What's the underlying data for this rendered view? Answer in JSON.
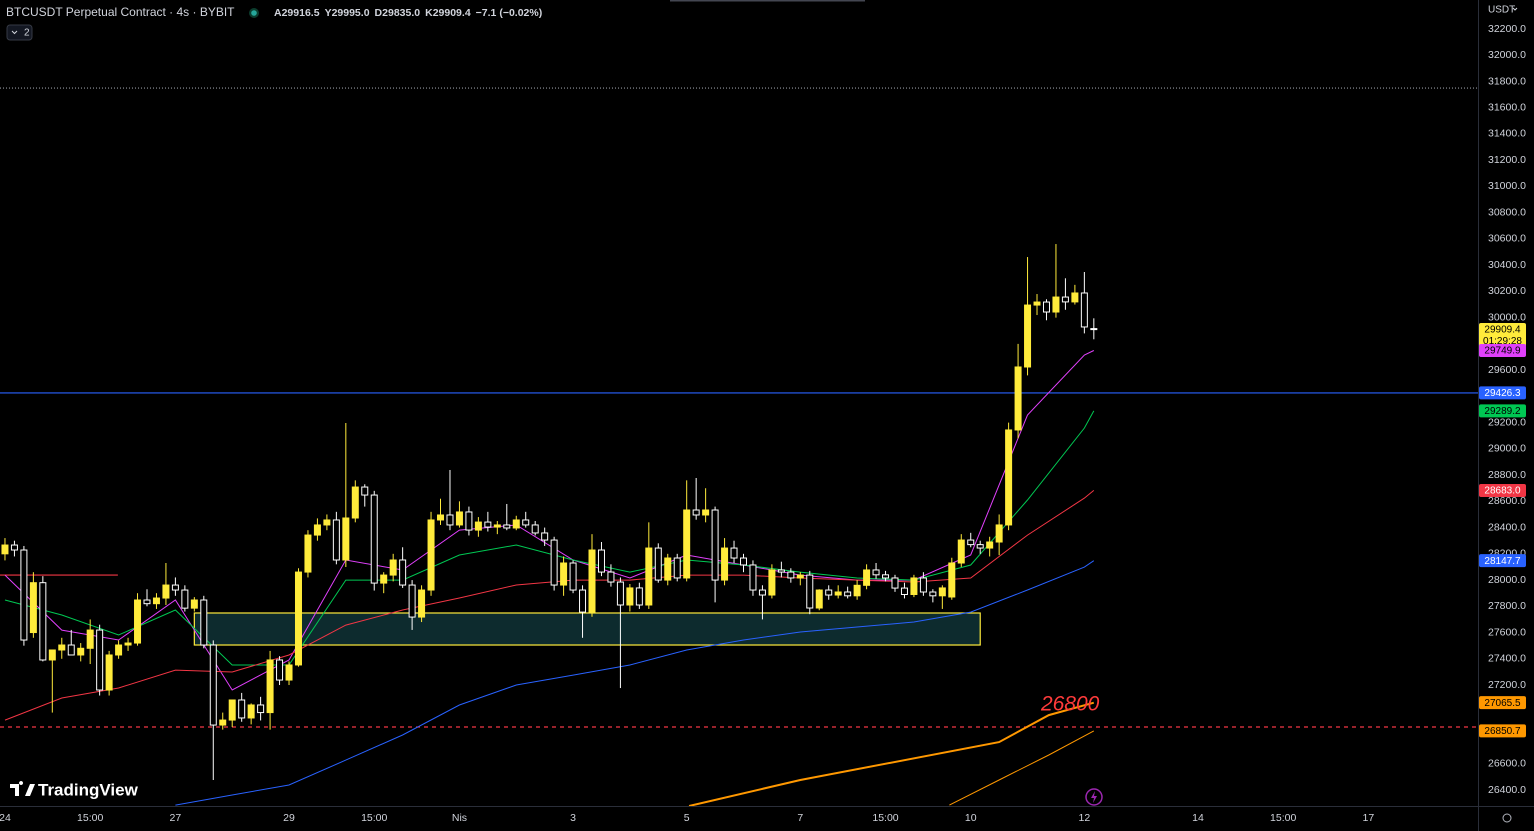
{
  "header": {
    "title": "BTCUSDT Perpetual Contract · 4s · BYBIT",
    "ohlc": [
      {
        "key": "A",
        "value": "29916.5"
      },
      {
        "key": "Y",
        "value": "29995.0"
      },
      {
        "key": "D",
        "value": "29835.0"
      },
      {
        "key": "K",
        "value": "29909.4"
      }
    ],
    "change": "−7.1 (−0.02%)",
    "indicators": "2",
    "currency": "USDT"
  },
  "logo": "TradingView",
  "chart_data": {
    "type": "candlestick",
    "x": [
      0,
      4,
      8,
      12,
      16,
      20,
      24,
      28,
      32,
      36,
      40,
      44,
      48,
      52,
      56,
      60,
      64,
      68,
      72,
      76,
      80,
      84,
      88,
      92,
      96,
      100,
      104,
      108,
      112,
      116,
      120,
      124,
      128,
      132,
      136,
      140,
      144,
      148,
      152,
      156,
      160,
      164,
      168,
      172,
      176,
      180,
      184,
      188,
      192,
      196,
      200,
      204,
      208,
      212,
      216,
      220,
      224,
      228,
      232,
      236,
      240,
      244,
      248,
      252,
      256,
      260,
      264,
      268,
      272,
      276,
      280,
      284,
      288,
      292,
      296,
      300,
      304,
      308,
      312,
      316,
      320,
      324,
      328,
      332,
      336,
      340,
      344,
      348,
      352,
      356,
      360,
      364,
      368,
      372,
      376,
      380,
      384,
      388,
      392,
      396,
      400,
      404,
      408,
      412,
      416,
      420,
      424,
      428,
      432,
      436,
      440,
      444,
      448,
      452,
      456,
      460
    ],
    "open": [
      28200,
      28267,
      28229,
      27600,
      27980,
      27391,
      27467,
      27505,
      27429,
      27480,
      27619,
      27162,
      27429,
      27505,
      27520,
      27848,
      27820,
      27863,
      27962,
      27924,
      27786,
      27848,
      27505,
      26895,
      26933,
      27086,
      26949,
      27048,
      26990,
      27391,
      27238,
      27353,
      28061,
      28343,
      28420,
      28458,
      28153,
      28473,
      28709,
      28648,
      27977,
      28038,
      28153,
      27962,
      27718,
      27924,
      28458,
      28496,
      28420,
      28519,
      28381,
      28442,
      28404,
      28420,
      28397,
      28458,
      28420,
      28359,
      28305,
      27962,
      28130,
      27924,
      27756,
      28229,
      28061,
      27985,
      27810,
      27940,
      27810,
      28244,
      28000,
      28168,
      28016,
      28534,
      28496,
      28534,
      28000,
      28244,
      28168,
      28115,
      27924,
      27886,
      28077,
      28061,
      28016,
      28038,
      27787,
      27924,
      27886,
      27909,
      27880,
      27960,
      28077,
      28040,
      28016,
      27939,
      27890,
      28016,
      27909,
      27880,
      27871,
      28130,
      28305,
      28270,
      28244,
      28290,
      28420,
      29144,
      29624,
      30096,
      30119,
      30043,
      30157,
      30120,
      30188,
      29916.5
    ],
    "high": [
      28320,
      28300,
      28260,
      28060,
      28030,
      27460,
      27560,
      27620,
      27520,
      27700,
      27660,
      27460,
      27540,
      27560,
      27900,
      27930,
      27900,
      28130,
      28020,
      27960,
      27870,
      27880,
      27540,
      26990,
      27080,
      27140,
      27060,
      27110,
      27460,
      27420,
      27380,
      28090,
      28380,
      28470,
      28500,
      28520,
      29197,
      28760,
      28730,
      28680,
      28060,
      28200,
      28250,
      28000,
      27960,
      28520,
      28620,
      28839,
      28600,
      28560,
      28480,
      28520,
      28450,
      28580,
      28490,
      28520,
      28450,
      28400,
      28330,
      28180,
      28150,
      27960,
      28350,
      28290,
      28120,
      28020,
      27970,
      27980,
      28440,
      28280,
      28200,
      28200,
      28760,
      28778,
      28700,
      28560,
      28320,
      28300,
      28200,
      28150,
      27960,
      28120,
      28140,
      28090,
      28060,
      28070,
      27930,
      27960,
      27960,
      27950,
      28000,
      28120,
      28130,
      28070,
      28040,
      27980,
      28040,
      28060,
      27930,
      27960,
      28170,
      28350,
      28360,
      28300,
      28330,
      28500,
      29200,
      29800,
      30462,
      30180,
      30140,
      30561,
      30300,
      30250,
      30348,
      29995.0
    ],
    "low": [
      28150,
      28180,
      27500,
      27560,
      27380,
      26990,
      27400,
      27430,
      27380,
      27360,
      27120,
      27120,
      27400,
      27460,
      27500,
      27800,
      27780,
      27810,
      27880,
      27760,
      27760,
      27480,
      26476,
      26860,
      26880,
      26920,
      26900,
      26930,
      26860,
      27200,
      27200,
      27340,
      28020,
      28300,
      28380,
      28120,
      28100,
      28440,
      28560,
      27920,
      27900,
      27990,
      27940,
      27620,
      27680,
      27880,
      28420,
      28380,
      28400,
      28340,
      28330,
      28370,
      28350,
      28380,
      28380,
      28400,
      28340,
      28260,
      27920,
      27880,
      27900,
      27560,
      27720,
      28030,
      27950,
      27177,
      27760,
      27780,
      27780,
      27980,
      27960,
      27990,
      27990,
      28460,
      28440,
      27830,
      27960,
      28130,
      28060,
      27880,
      27700,
      27860,
      28020,
      27980,
      27960,
      27740,
      27770,
      27850,
      27860,
      27860,
      27850,
      27930,
      28010,
      27990,
      27910,
      27860,
      27870,
      27880,
      27830,
      27780,
      27850,
      28100,
      28250,
      28200,
      28180,
      28190,
      28380,
      29080,
      29560,
      30020,
      29980,
      30000,
      30060,
      30100,
      29880,
      29835.0
    ],
    "close": [
      28267,
      28229,
      27543,
      27980,
      27391,
      27467,
      27505,
      27429,
      27480,
      27619,
      27162,
      27429,
      27505,
      27520,
      27848,
      27820,
      27863,
      27962,
      27924,
      27786,
      27848,
      27505,
      26895,
      26933,
      27086,
      26949,
      27048,
      26990,
      27391,
      27238,
      27353,
      28061,
      28343,
      28420,
      28458,
      28153,
      28473,
      28709,
      28648,
      27977,
      28038,
      28153,
      27962,
      27718,
      27924,
      28458,
      28496,
      28420,
      28519,
      28381,
      28442,
      28404,
      28420,
      28397,
      28458,
      28420,
      28359,
      28305,
      27962,
      28130,
      27924,
      27756,
      28229,
      28061,
      27985,
      27810,
      27940,
      27810,
      28244,
      28000,
      28168,
      28016,
      28534,
      28496,
      28534,
      28000,
      28244,
      28168,
      28115,
      27924,
      27886,
      28077,
      28061,
      28016,
      28038,
      27787,
      27924,
      27886,
      27909,
      27880,
      27960,
      28077,
      28040,
      28016,
      27939,
      27890,
      28016,
      27909,
      27880,
      27940,
      28130,
      28305,
      28270,
      28244,
      28290,
      28420,
      29144,
      29624,
      30096,
      30119,
      30043,
      30157,
      30120,
      30188,
      29929,
      29909.4
    ],
    "up_color": "#ffeb3b",
    "down_color": "#ffffff",
    "series": [
      {
        "color": "#e040fb",
        "width": 1,
        "x": [
          0,
          24,
          48,
          72,
          96,
          120,
          144,
          168,
          192,
          216,
          240,
          264,
          288,
          312,
          336,
          360,
          384,
          408,
          432,
          456,
          460
        ],
        "values": [
          28038,
          27619,
          27543,
          27848,
          27162,
          27391,
          28153,
          28077,
          28381,
          28420,
          28153,
          28016,
          28191,
          28115,
          28038,
          28000,
          28000,
          28191,
          29258,
          29715,
          29749.9
        ]
      },
      {
        "color": "#00c853",
        "width": 1,
        "x": [
          0,
          24,
          48,
          72,
          96,
          120,
          144,
          168,
          192,
          216,
          240,
          264,
          288,
          312,
          336,
          360,
          384,
          408,
          432,
          456,
          460
        ],
        "values": [
          27848,
          27734,
          27581,
          27772,
          27353,
          27353,
          28000,
          28000,
          28191,
          28267,
          28153,
          28061,
          28153,
          28115,
          28061,
          28016,
          28000,
          28115,
          28610,
          29159,
          29289.2
        ]
      },
      {
        "color": "#f23645",
        "width": 1,
        "x": [
          0,
          24,
          48,
          72,
          96,
          120,
          144,
          168,
          192,
          216,
          240,
          264,
          288,
          312,
          336,
          360,
          384,
          408,
          432,
          456,
          460
        ],
        "values": [
          26933,
          27101,
          27177,
          27314,
          27299,
          27429,
          27657,
          27772,
          27863,
          27962,
          28000,
          28000,
          28038,
          28038,
          28016,
          28000,
          27985,
          28016,
          28343,
          28625,
          28683.0
        ]
      },
      {
        "color": "#2962ff",
        "width": 1,
        "x": [
          72,
          96,
          120,
          144,
          168,
          192,
          216,
          240,
          264,
          288,
          312,
          336,
          360,
          384,
          408,
          432,
          456,
          460
        ],
        "values": [
          26285,
          26362,
          26438,
          26628,
          26819,
          27048,
          27200,
          27276,
          27353,
          27467,
          27543,
          27604,
          27642,
          27680,
          27756,
          27924,
          28099,
          28147.7
        ]
      },
      {
        "color": "#ff9800",
        "width": 2,
        "x": [
          289,
          336,
          420,
          441,
          460
        ],
        "values": [
          26278,
          26476,
          26765,
          26971,
          27065.5
        ]
      },
      {
        "color": "#ff9800",
        "width": 1,
        "x": [
          399,
          420,
          441,
          460
        ],
        "values": [
          26285,
          26476,
          26667,
          26850.7
        ]
      }
    ],
    "xlim": [
      -2.1,
      622.3
    ],
    "ylim": [
      26278,
      32421
    ],
    "xticks": [
      {
        "value": 0,
        "label": "24"
      },
      {
        "value": 36,
        "label": "15:00"
      },
      {
        "value": 72,
        "label": "27"
      },
      {
        "value": 120,
        "label": "29"
      },
      {
        "value": 156,
        "label": "15:00"
      },
      {
        "value": 192,
        "label": "Nis"
      },
      {
        "value": 240,
        "label": "3"
      },
      {
        "value": 288,
        "label": "5"
      },
      {
        "value": 336,
        "label": "7"
      },
      {
        "value": 372,
        "label": "15:00"
      },
      {
        "value": 408,
        "label": "10"
      },
      {
        "value": 456,
        "label": "12"
      },
      {
        "value": 504,
        "label": "14"
      },
      {
        "value": 540,
        "label": "15:00"
      },
      {
        "value": 576,
        "label": "17"
      }
    ],
    "yticks": [
      {
        "value": 32200,
        "label": "32200.0"
      },
      {
        "value": 32000,
        "label": "32000.0"
      },
      {
        "value": 31800,
        "label": "31800.0"
      },
      {
        "value": 31600,
        "label": "31600.0"
      },
      {
        "value": 31400,
        "label": "31400.0"
      },
      {
        "value": 31200,
        "label": "31200.0"
      },
      {
        "value": 31000,
        "label": "31000.0"
      },
      {
        "value": 30800,
        "label": "30800.0"
      },
      {
        "value": 30600,
        "label": "30600.0"
      },
      {
        "value": 30400,
        "label": "30400.0"
      },
      {
        "value": 30200,
        "label": "30200.0"
      },
      {
        "value": 30000,
        "label": "30000.0"
      },
      {
        "value": 29600,
        "label": "29600.0"
      },
      {
        "value": 29200,
        "label": "29200.0"
      },
      {
        "value": 29000,
        "label": "29000.0"
      },
      {
        "value": 28800,
        "label": "28800.0"
      },
      {
        "value": 28600,
        "label": "28600.0"
      },
      {
        "value": 28400,
        "label": "28400.0"
      },
      {
        "value": 28200,
        "label": "28200.0"
      },
      {
        "value": 28000,
        "label": "28000.0"
      },
      {
        "value": 27800,
        "label": "27800.0"
      },
      {
        "value": 27600,
        "label": "27600.0"
      },
      {
        "value": 27400,
        "label": "27400.0"
      },
      {
        "value": 27200,
        "label": "27200.0"
      },
      {
        "value": 26600,
        "label": "26600.0"
      },
      {
        "value": 26400,
        "label": "26400.0"
      }
    ],
    "grid": false,
    "hlines": [
      {
        "value": 29426.3,
        "color": "#2962ff",
        "style": "solid"
      },
      {
        "value": 26880,
        "color": "#f23645",
        "style": "dashed"
      },
      {
        "value": 31750,
        "color": "#9598a1",
        "style": "dotted"
      },
      {
        "value": 28038,
        "color": "#f23645",
        "style": "solid",
        "x": [
          -2.1,
          47.7
        ]
      }
    ],
    "zone": {
      "x": [
        80,
        412
      ],
      "y": [
        27505,
        27749
      ],
      "color": "#ffeb3b",
      "fill": "#0d2b2e"
    },
    "annotation": {
      "text": "26800",
      "x": 450,
      "y": 27048,
      "color": "#ff3b3b"
    },
    "price_labels": [
      {
        "value": 29909.4,
        "label": "29909.4",
        "color": "#ffeb3b",
        "text_color": "#000000",
        "countdown": "01:29:28"
      },
      {
        "value": 29749.9,
        "label": "29749.9",
        "color": "#e040fb",
        "text_color": "#000000"
      },
      {
        "value": 29426.3,
        "label": "29426.3",
        "color": "#2962ff",
        "text_color": "#ffffff"
      },
      {
        "value": 29289.2,
        "label": "29289.2",
        "color": "#00c853",
        "text_color": "#000000"
      },
      {
        "value": 28683.0,
        "label": "28683.0",
        "color": "#f23645",
        "text_color": "#ffffff"
      },
      {
        "value": 28147.7,
        "label": "28147.7",
        "color": "#2962ff",
        "text_color": "#ffffff"
      },
      {
        "value": 27065.5,
        "label": "27065.5",
        "color": "#ff9800",
        "text_color": "#000000"
      },
      {
        "value": 26850.7,
        "label": "26850.7",
        "color": "#ff9800",
        "text_color": "#000000"
      }
    ]
  }
}
